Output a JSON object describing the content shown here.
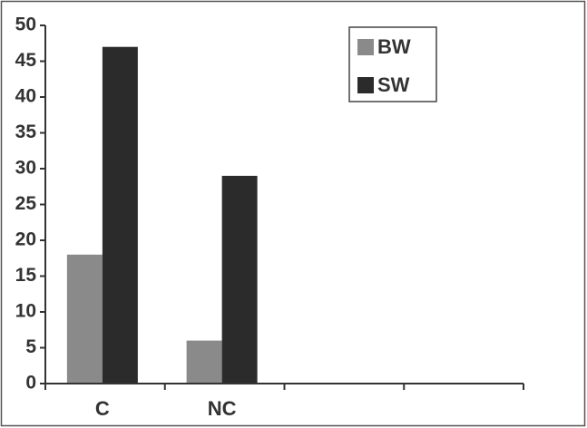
{
  "chart_data": {
    "type": "bar",
    "categories": [
      "C",
      "NC",
      null,
      null
    ],
    "series": [
      {
        "name": "BW",
        "color": "#8a8a8a",
        "values": [
          18,
          6,
          null,
          null
        ]
      },
      {
        "name": "SW",
        "color": "#2b2b2b",
        "values": [
          47,
          29,
          null,
          null
        ]
      }
    ],
    "ylim": [
      0,
      50
    ],
    "yticks": [
      0,
      5,
      10,
      15,
      20,
      25,
      30,
      35,
      40,
      45,
      50
    ],
    "grid": false,
    "legend": "top-right"
  }
}
